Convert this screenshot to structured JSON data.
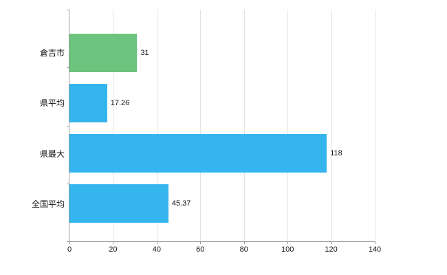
{
  "chart_data": {
    "type": "bar",
    "orientation": "horizontal",
    "title": "",
    "categories": [
      "倉吉市",
      "県平均",
      "県最大",
      "全国平均"
    ],
    "values": [
      31,
      17.26,
      118,
      45.37
    ],
    "value_labels": [
      "31",
      "17.26",
      "118",
      "45.37"
    ],
    "bar_colors": [
      "#6cc47e",
      "#35b5ee",
      "#35b5ee",
      "#35b5ee"
    ],
    "xlim": [
      0,
      140
    ],
    "x_ticks": [
      0,
      20,
      40,
      60,
      80,
      100,
      120,
      140
    ],
    "grid": true,
    "legend": false
  },
  "colors": {
    "axis": "#9a9a9a",
    "gridline": "#e3e3e3",
    "text": "#111111",
    "background": "#ffffff"
  }
}
